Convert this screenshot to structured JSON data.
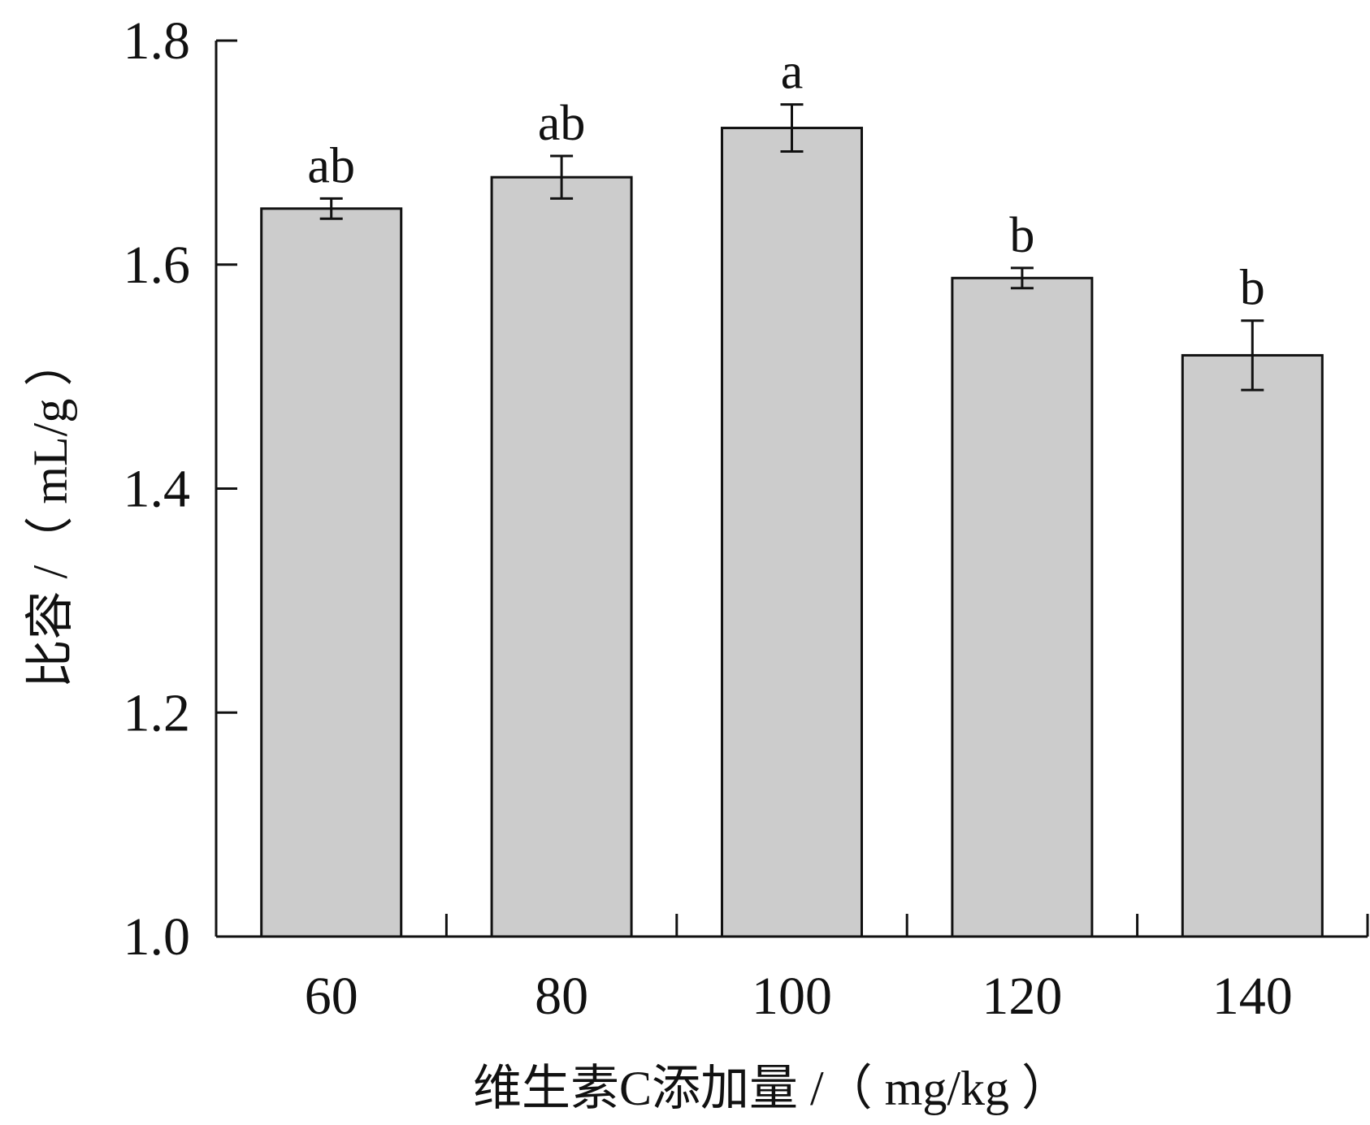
{
  "chart_data": {
    "type": "bar",
    "title": "",
    "xlabel": "维生素C添加量 /（ mg/kg ）",
    "ylabel": "比容 /（ mL/g ）",
    "categories": [
      "60",
      "80",
      "100",
      "120",
      "140"
    ],
    "values": [
      1.65,
      1.678,
      1.722,
      1.588,
      1.519
    ],
    "errors": [
      0.009,
      0.019,
      0.021,
      0.009,
      0.031
    ],
    "significance": [
      "ab",
      "ab",
      "a",
      "b",
      "b"
    ],
    "ylim": [
      1.0,
      1.8
    ],
    "yticks": [
      "1.0",
      "1.2",
      "1.4",
      "1.6",
      "1.8"
    ],
    "grid": false,
    "legend": "none",
    "colors": {
      "bar_fill": "#cccccc",
      "bar_stroke": "#111111",
      "axis": "#111111"
    }
  }
}
